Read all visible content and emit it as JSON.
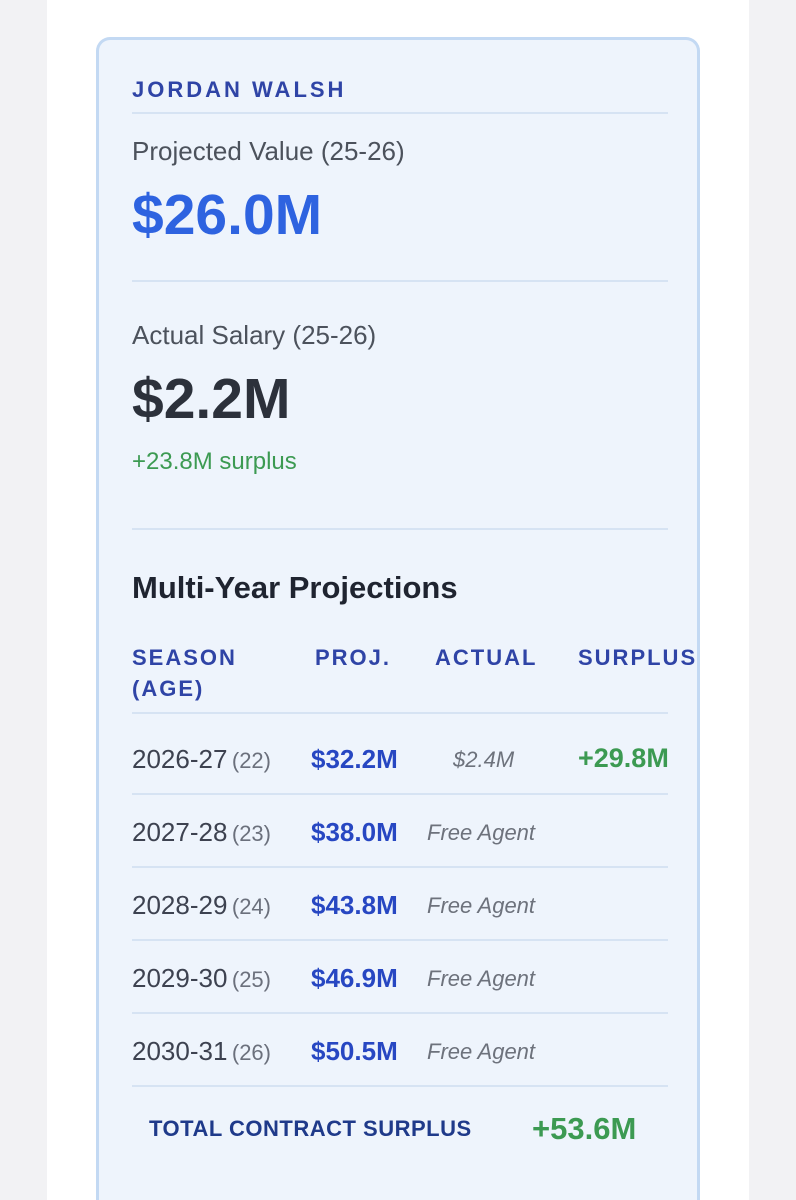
{
  "player": {
    "name": "JORDAN WALSH"
  },
  "projected": {
    "label": "Projected Value (25-26)",
    "value": "$26.0M"
  },
  "actual": {
    "label": "Actual Salary (25-26)",
    "value": "$2.2M",
    "surplus_note": "+23.8M surplus"
  },
  "projections": {
    "title": "Multi-Year Projections",
    "columns": {
      "season_line1": "SEASON",
      "season_line2": "(AGE)",
      "proj": "PROJ.",
      "actual": "ACTUAL",
      "surplus": "SURPLUS"
    },
    "rows": [
      {
        "season": "2026-27",
        "age": "(22)",
        "proj": "$32.2M",
        "actual": "$2.4M",
        "surplus": "+29.8M"
      },
      {
        "season": "2027-28",
        "age": "(23)",
        "proj": "$38.0M",
        "actual": "Free Agent",
        "surplus": ""
      },
      {
        "season": "2028-29",
        "age": "(24)",
        "proj": "$43.8M",
        "actual": "Free Agent",
        "surplus": ""
      },
      {
        "season": "2029-30",
        "age": "(25)",
        "proj": "$46.9M",
        "actual": "Free Agent",
        "surplus": ""
      },
      {
        "season": "2030-31",
        "age": "(26)",
        "proj": "$50.5M",
        "actual": "Free Agent",
        "surplus": ""
      }
    ],
    "total": {
      "label": "TOTAL CONTRACT SURPLUS",
      "value": "+53.6M"
    }
  },
  "colors": {
    "accent_blue": "#2e63e0",
    "heading_blue": "#2f44a6",
    "surplus_green": "#3c9a52",
    "card_bg": "#eef4fc"
  }
}
